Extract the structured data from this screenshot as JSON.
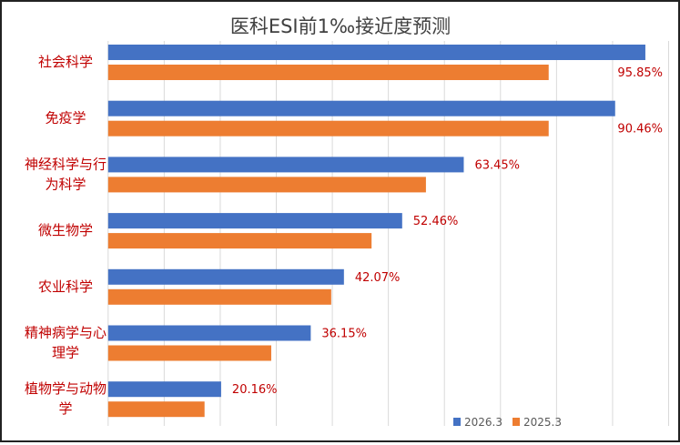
{
  "chart_data": {
    "type": "bar",
    "orientation": "horizontal",
    "title": "医科ESI前1‰接近度预测",
    "categories": [
      [
        "社会科学"
      ],
      [
        "免疫学"
      ],
      [
        "神经科学与行",
        "为科学"
      ],
      [
        "微生物学"
      ],
      [
        "农业科学"
      ],
      [
        "精神病学与心",
        "理学"
      ],
      [
        "植物学与动物",
        "学"
      ]
    ],
    "series": [
      {
        "name": "2026.3",
        "color": "#4472C4",
        "values": [
          95.85,
          90.46,
          63.45,
          52.46,
          42.07,
          36.15,
          20.16
        ],
        "labels": [
          "95.85%",
          "90.46%",
          "63.45%",
          "52.46%",
          "42.07%",
          "36.15%",
          "20.16%"
        ]
      },
      {
        "name": "2025.3",
        "color": "#ED7D31",
        "values": [
          78.6,
          78.6,
          56.7,
          47.0,
          39.8,
          29.1,
          17.2
        ]
      }
    ],
    "xlim": [
      0,
      100
    ],
    "grid": true,
    "legend": "bottom-right",
    "label_color": "#C00000"
  }
}
